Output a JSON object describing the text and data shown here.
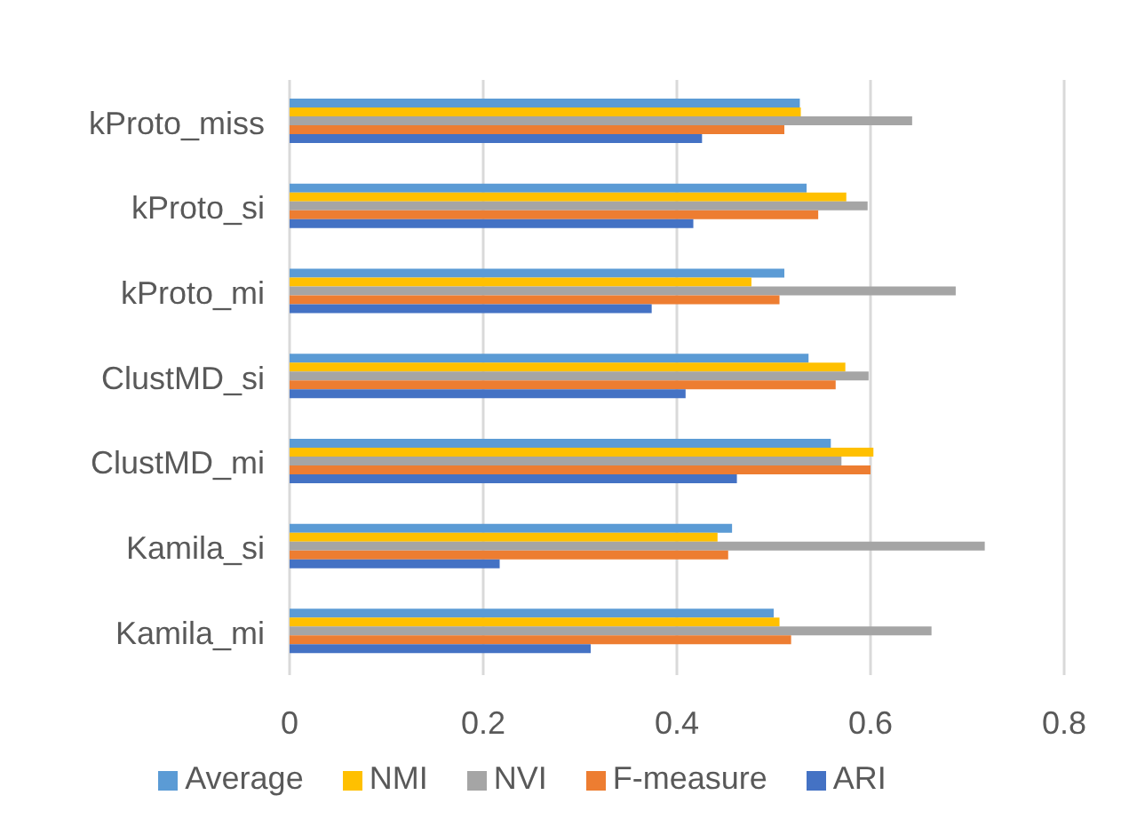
{
  "chart_data": {
    "type": "bar",
    "orientation": "horizontal",
    "categories": [
      "kProto_miss",
      "kProto_si",
      "kProto_mi",
      "ClustMD_si",
      "ClustMD_mi",
      "Kamila_si",
      "Kamila_mi"
    ],
    "series": [
      {
        "name": "Average",
        "color": "#5b9bd5",
        "values": [
          0.527,
          0.534,
          0.511,
          0.536,
          0.559,
          0.457,
          0.5
        ]
      },
      {
        "name": "NMI",
        "color": "#ffc000",
        "values": [
          0.528,
          0.575,
          0.477,
          0.574,
          0.603,
          0.442,
          0.506
        ]
      },
      {
        "name": "NVI",
        "color": "#a5a5a5",
        "values": [
          0.643,
          0.597,
          0.688,
          0.598,
          0.57,
          0.718,
          0.663
        ]
      },
      {
        "name": "F-measure",
        "color": "#ed7d31",
        "values": [
          0.511,
          0.546,
          0.506,
          0.564,
          0.6,
          0.453,
          0.518
        ]
      },
      {
        "name": "ARI",
        "color": "#4472c4",
        "values": [
          0.426,
          0.417,
          0.374,
          0.409,
          0.462,
          0.217,
          0.311
        ]
      }
    ],
    "xlim": [
      0,
      0.8
    ],
    "xticks": [
      0,
      0.2,
      0.4,
      0.6,
      0.8
    ],
    "grid": "x",
    "legend": "bottom"
  }
}
